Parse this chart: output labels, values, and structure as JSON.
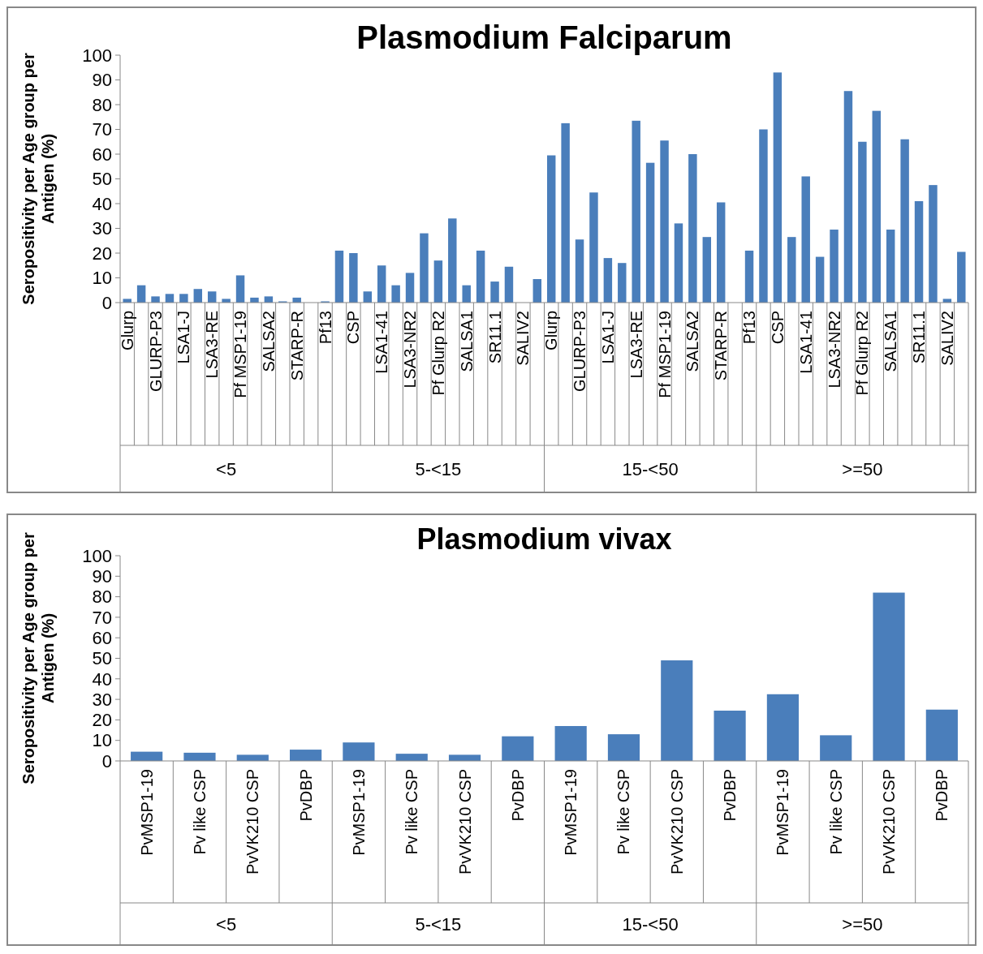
{
  "chart_data": [
    {
      "type": "bar",
      "title": "Plasmodium Falciparum",
      "ylabel": "Seropositivity per Age group per Antigen (%)",
      "color": "#4a7ebb",
      "ylim": [
        0,
        100
      ],
      "yticks": [
        0,
        10,
        20,
        30,
        40,
        50,
        60,
        70,
        80,
        90,
        100
      ],
      "categories": [
        "Glurp",
        null,
        "GLURP-P3",
        null,
        "LSA1-J",
        null,
        "LSA3-RE",
        null,
        "Pf MSP1-19",
        null,
        "SALSA2",
        null,
        "STARP-R",
        null,
        "Pf13",
        null,
        "CSP",
        null,
        "LSA1-41",
        null,
        "LSA3-NR2",
        null,
        "Pf Glurp R2",
        null,
        "SALSA1",
        null,
        "SR11.1",
        null,
        "SALIV2",
        null,
        "Glurp",
        null,
        "GLURP-P3",
        null,
        "LSA1-J",
        null,
        "LSA3-RE",
        null,
        "Pf MSP1-19",
        null,
        "SALSA2",
        null,
        "STARP-R",
        null,
        "Pf13",
        null,
        "CSP",
        null,
        "LSA1-41",
        null,
        "LSA3-NR2",
        null,
        "Pf Glurp R2",
        null,
        "SALSA1",
        null,
        "SR11.1",
        null,
        "SALIV2",
        null
      ],
      "values": [
        1.5,
        7,
        2.5,
        3.5,
        3.5,
        5.5,
        4.5,
        1.5,
        11,
        2,
        2.5,
        0.5,
        2,
        0,
        0.5,
        21,
        20,
        4.5,
        15,
        7,
        12,
        28,
        17,
        34,
        7,
        21,
        8.5,
        14.5,
        0,
        9.5,
        59.5,
        72.5,
        25.5,
        44.5,
        18,
        16,
        73.5,
        56.5,
        65.5,
        32,
        60,
        26.5,
        40.5,
        0,
        21,
        70,
        93,
        26.5,
        51,
        18.5,
        29.5,
        85.5,
        65,
        77.5,
        29.5,
        66,
        41,
        47.5,
        1.5,
        20.5
      ],
      "annotations": [
        "<5",
        "5-<15",
        "15-<50",
        ">=50"
      ]
    },
    {
      "type": "bar",
      "title": "Plasmodium vivax",
      "ylabel": "Seropositivity per Age group per Antigen (%)",
      "color": "#4a7ebb",
      "ylim": [
        0,
        100
      ],
      "yticks": [
        0,
        10,
        20,
        30,
        40,
        50,
        60,
        70,
        80,
        90,
        100
      ],
      "categories": [
        "PvMSP1-19",
        "Pv like CSP",
        "PvVK210 CSP",
        "PvDBP",
        "PvMSP1-19",
        "Pv like CSP",
        "PvVK210 CSP",
        "PvDBP",
        "PvMSP1-19",
        "Pv like CSP",
        "PvVK210 CSP",
        "PvDBP",
        "PvMSP1-19",
        "Pv like CSP",
        "PvVK210 CSP",
        "PvDBP"
      ],
      "values": [
        4.5,
        4,
        3,
        5.5,
        9,
        3.5,
        3,
        12,
        17,
        13,
        49,
        24.5,
        32.5,
        12.5,
        82,
        25
      ],
      "annotations": [
        "<5",
        "5-<15",
        "15-<50",
        ">=50"
      ]
    }
  ]
}
